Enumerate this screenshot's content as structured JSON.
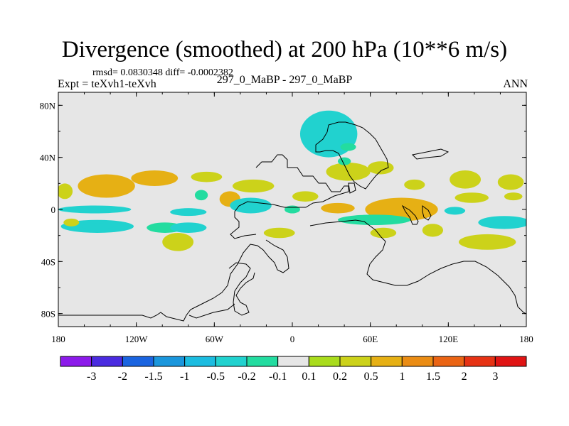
{
  "chart_data": {
    "type": "heatmap",
    "title": "Divergence (smoothed) at 200 hPa (10**6 m/s)",
    "subtitle": "rmsd= 0.0830348 diff= -0.0002382",
    "left_label": "Expt = teXvh1-teXvh",
    "center_label": "297_0_MaBP - 297_0_MaBP",
    "right_label": "ANN",
    "xlabel": "",
    "ylabel": "",
    "xlim": [
      -180,
      180
    ],
    "ylim": [
      -90,
      90
    ],
    "x_ticks": [
      {
        "value": -180,
        "label": "180"
      },
      {
        "value": -120,
        "label": "120W"
      },
      {
        "value": -60,
        "label": "60W"
      },
      {
        "value": 0,
        "label": "0"
      },
      {
        "value": 60,
        "label": "60E"
      },
      {
        "value": 120,
        "label": "120E"
      },
      {
        "value": 180,
        "label": "180"
      }
    ],
    "y_ticks": [
      {
        "value": 80,
        "label": "80N"
      },
      {
        "value": 40,
        "label": "40N"
      },
      {
        "value": 0,
        "label": "0"
      },
      {
        "value": -40,
        "label": "40S"
      },
      {
        "value": -80,
        "label": "80S"
      }
    ],
    "colorbar": {
      "colors": [
        "#8c1aea",
        "#4a2be0",
        "#1a64e0",
        "#1a96dc",
        "#1bbce0",
        "#21d2cf",
        "#23dca0",
        "#e6e6e6",
        "#a9dc1c",
        "#ccd21a",
        "#e6b014",
        "#ea8c14",
        "#ea6414",
        "#e63214",
        "#e01414"
      ],
      "labels": [
        "-3",
        "-2",
        "-1.5",
        "-1",
        "-0.5",
        "-0.2",
        "-0.1",
        "0.1",
        "0.2",
        "0.5",
        "1",
        "1.5",
        "2",
        "3"
      ]
    },
    "features": [
      {
        "lon": -143,
        "lat": 18,
        "rx": 22,
        "ry": 9,
        "v": 0.6
      },
      {
        "lon": -106,
        "lat": 24,
        "rx": 18,
        "ry": 6,
        "v": 0.5
      },
      {
        "lon": -175,
        "lat": 14,
        "rx": 6,
        "ry": 6,
        "v": 0.3
      },
      {
        "lon": -66,
        "lat": 25,
        "rx": 12,
        "ry": 4,
        "v": 0.3
      },
      {
        "lon": -30,
        "lat": 18,
        "rx": 16,
        "ry": 5,
        "v": 0.25
      },
      {
        "lon": -48,
        "lat": 8,
        "rx": 8,
        "ry": 6,
        "v": 0.6
      },
      {
        "lon": 10,
        "lat": 10,
        "rx": 10,
        "ry": 4,
        "v": 0.25
      },
      {
        "lon": -152,
        "lat": 0,
        "rx": 28,
        "ry": 3,
        "v": -0.25
      },
      {
        "lon": -80,
        "lat": -2,
        "rx": 14,
        "ry": 3,
        "v": -0.3
      },
      {
        "lon": -70,
        "lat": 11,
        "rx": 5,
        "ry": 4,
        "v": -0.2
      },
      {
        "lon": -32,
        "lat": 3,
        "rx": 16,
        "ry": 6,
        "v": -0.35
      },
      {
        "lon": 43,
        "lat": 29,
        "rx": 17,
        "ry": 7,
        "v": 0.3
      },
      {
        "lon": 40,
        "lat": 37,
        "rx": 5,
        "ry": 3,
        "v": -0.2
      },
      {
        "lon": 68,
        "lat": 32,
        "rx": 10,
        "ry": 5,
        "v": 0.3
      },
      {
        "lon": 133,
        "lat": 23,
        "rx": 12,
        "ry": 7,
        "v": 0.4
      },
      {
        "lon": 168,
        "lat": 21,
        "rx": 10,
        "ry": 6,
        "v": 0.3
      },
      {
        "lon": 94,
        "lat": 19,
        "rx": 8,
        "ry": 4,
        "v": 0.2
      },
      {
        "lon": 138,
        "lat": 9,
        "rx": 13,
        "ry": 4,
        "v": 0.25
      },
      {
        "lon": 170,
        "lat": 10,
        "rx": 7,
        "ry": 3,
        "v": 0.3
      },
      {
        "lon": 35,
        "lat": 1,
        "rx": 13,
        "ry": 4,
        "v": 0.6
      },
      {
        "lon": 84,
        "lat": 0,
        "rx": 28,
        "ry": 9,
        "v": 0.5
      },
      {
        "lon": 0,
        "lat": 0,
        "rx": 6,
        "ry": 3,
        "v": -0.2
      },
      {
        "lon": 63,
        "lat": -8,
        "rx": 28,
        "ry": 4,
        "v": -0.2
      },
      {
        "lon": 125,
        "lat": -1,
        "rx": 8,
        "ry": 3,
        "v": -0.25
      },
      {
        "lon": 163,
        "lat": -10,
        "rx": 20,
        "ry": 5,
        "v": -0.45
      },
      {
        "lon": -150,
        "lat": -13,
        "rx": 28,
        "ry": 5,
        "v": -0.4
      },
      {
        "lon": -98,
        "lat": -14,
        "rx": 14,
        "ry": 4,
        "v": -0.2
      },
      {
        "lon": -80,
        "lat": -14,
        "rx": 14,
        "ry": 4,
        "v": -0.3
      },
      {
        "lon": -170,
        "lat": -10,
        "rx": 6,
        "ry": 3,
        "v": 0.2
      },
      {
        "lon": -10,
        "lat": -18,
        "rx": 12,
        "ry": 4,
        "v": 0.2
      },
      {
        "lon": 108,
        "lat": -16,
        "rx": 8,
        "ry": 5,
        "v": 0.3
      },
      {
        "lon": -88,
        "lat": -25,
        "rx": 12,
        "ry": 7,
        "v": 0.4
      },
      {
        "lon": 70,
        "lat": -18,
        "rx": 10,
        "ry": 4,
        "v": 0.2
      },
      {
        "lon": 150,
        "lat": -25,
        "rx": 22,
        "ry": 6,
        "v": 0.3
      },
      {
        "lon": 28,
        "lat": 58,
        "rx": 22,
        "ry": 18,
        "v": -0.3
      },
      {
        "lon": 43,
        "lat": 48,
        "rx": 6,
        "ry": 3,
        "v": -0.2
      }
    ]
  }
}
